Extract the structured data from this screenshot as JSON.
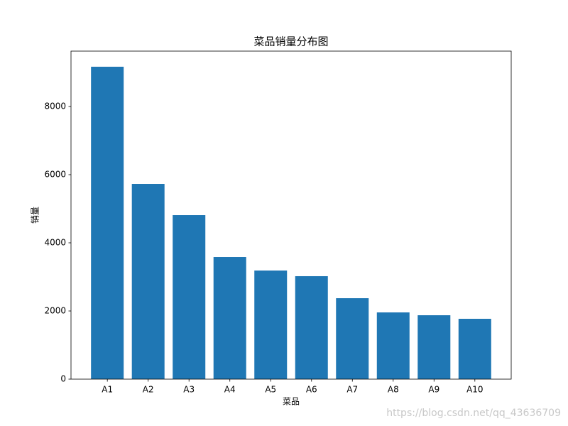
{
  "chart_data": {
    "type": "bar",
    "title": "菜品销量分布图",
    "x_label": "菜品",
    "y_label": "销量",
    "categories": [
      "A1",
      "A2",
      "A3",
      "A4",
      "A5",
      "A6",
      "A7",
      "A8",
      "A9",
      "A10"
    ],
    "values": [
      9167,
      5729,
      4812,
      3583,
      3187,
      3021,
      2375,
      1958,
      1875,
      1771
    ],
    "color": "#1f77b4",
    "ylim": [
      0,
      9625
    ],
    "yticks": [
      0,
      2000,
      4000,
      6000,
      8000
    ],
    "grid": false
  },
  "watermark": "https://blog.csdn.net/qq_43636709"
}
